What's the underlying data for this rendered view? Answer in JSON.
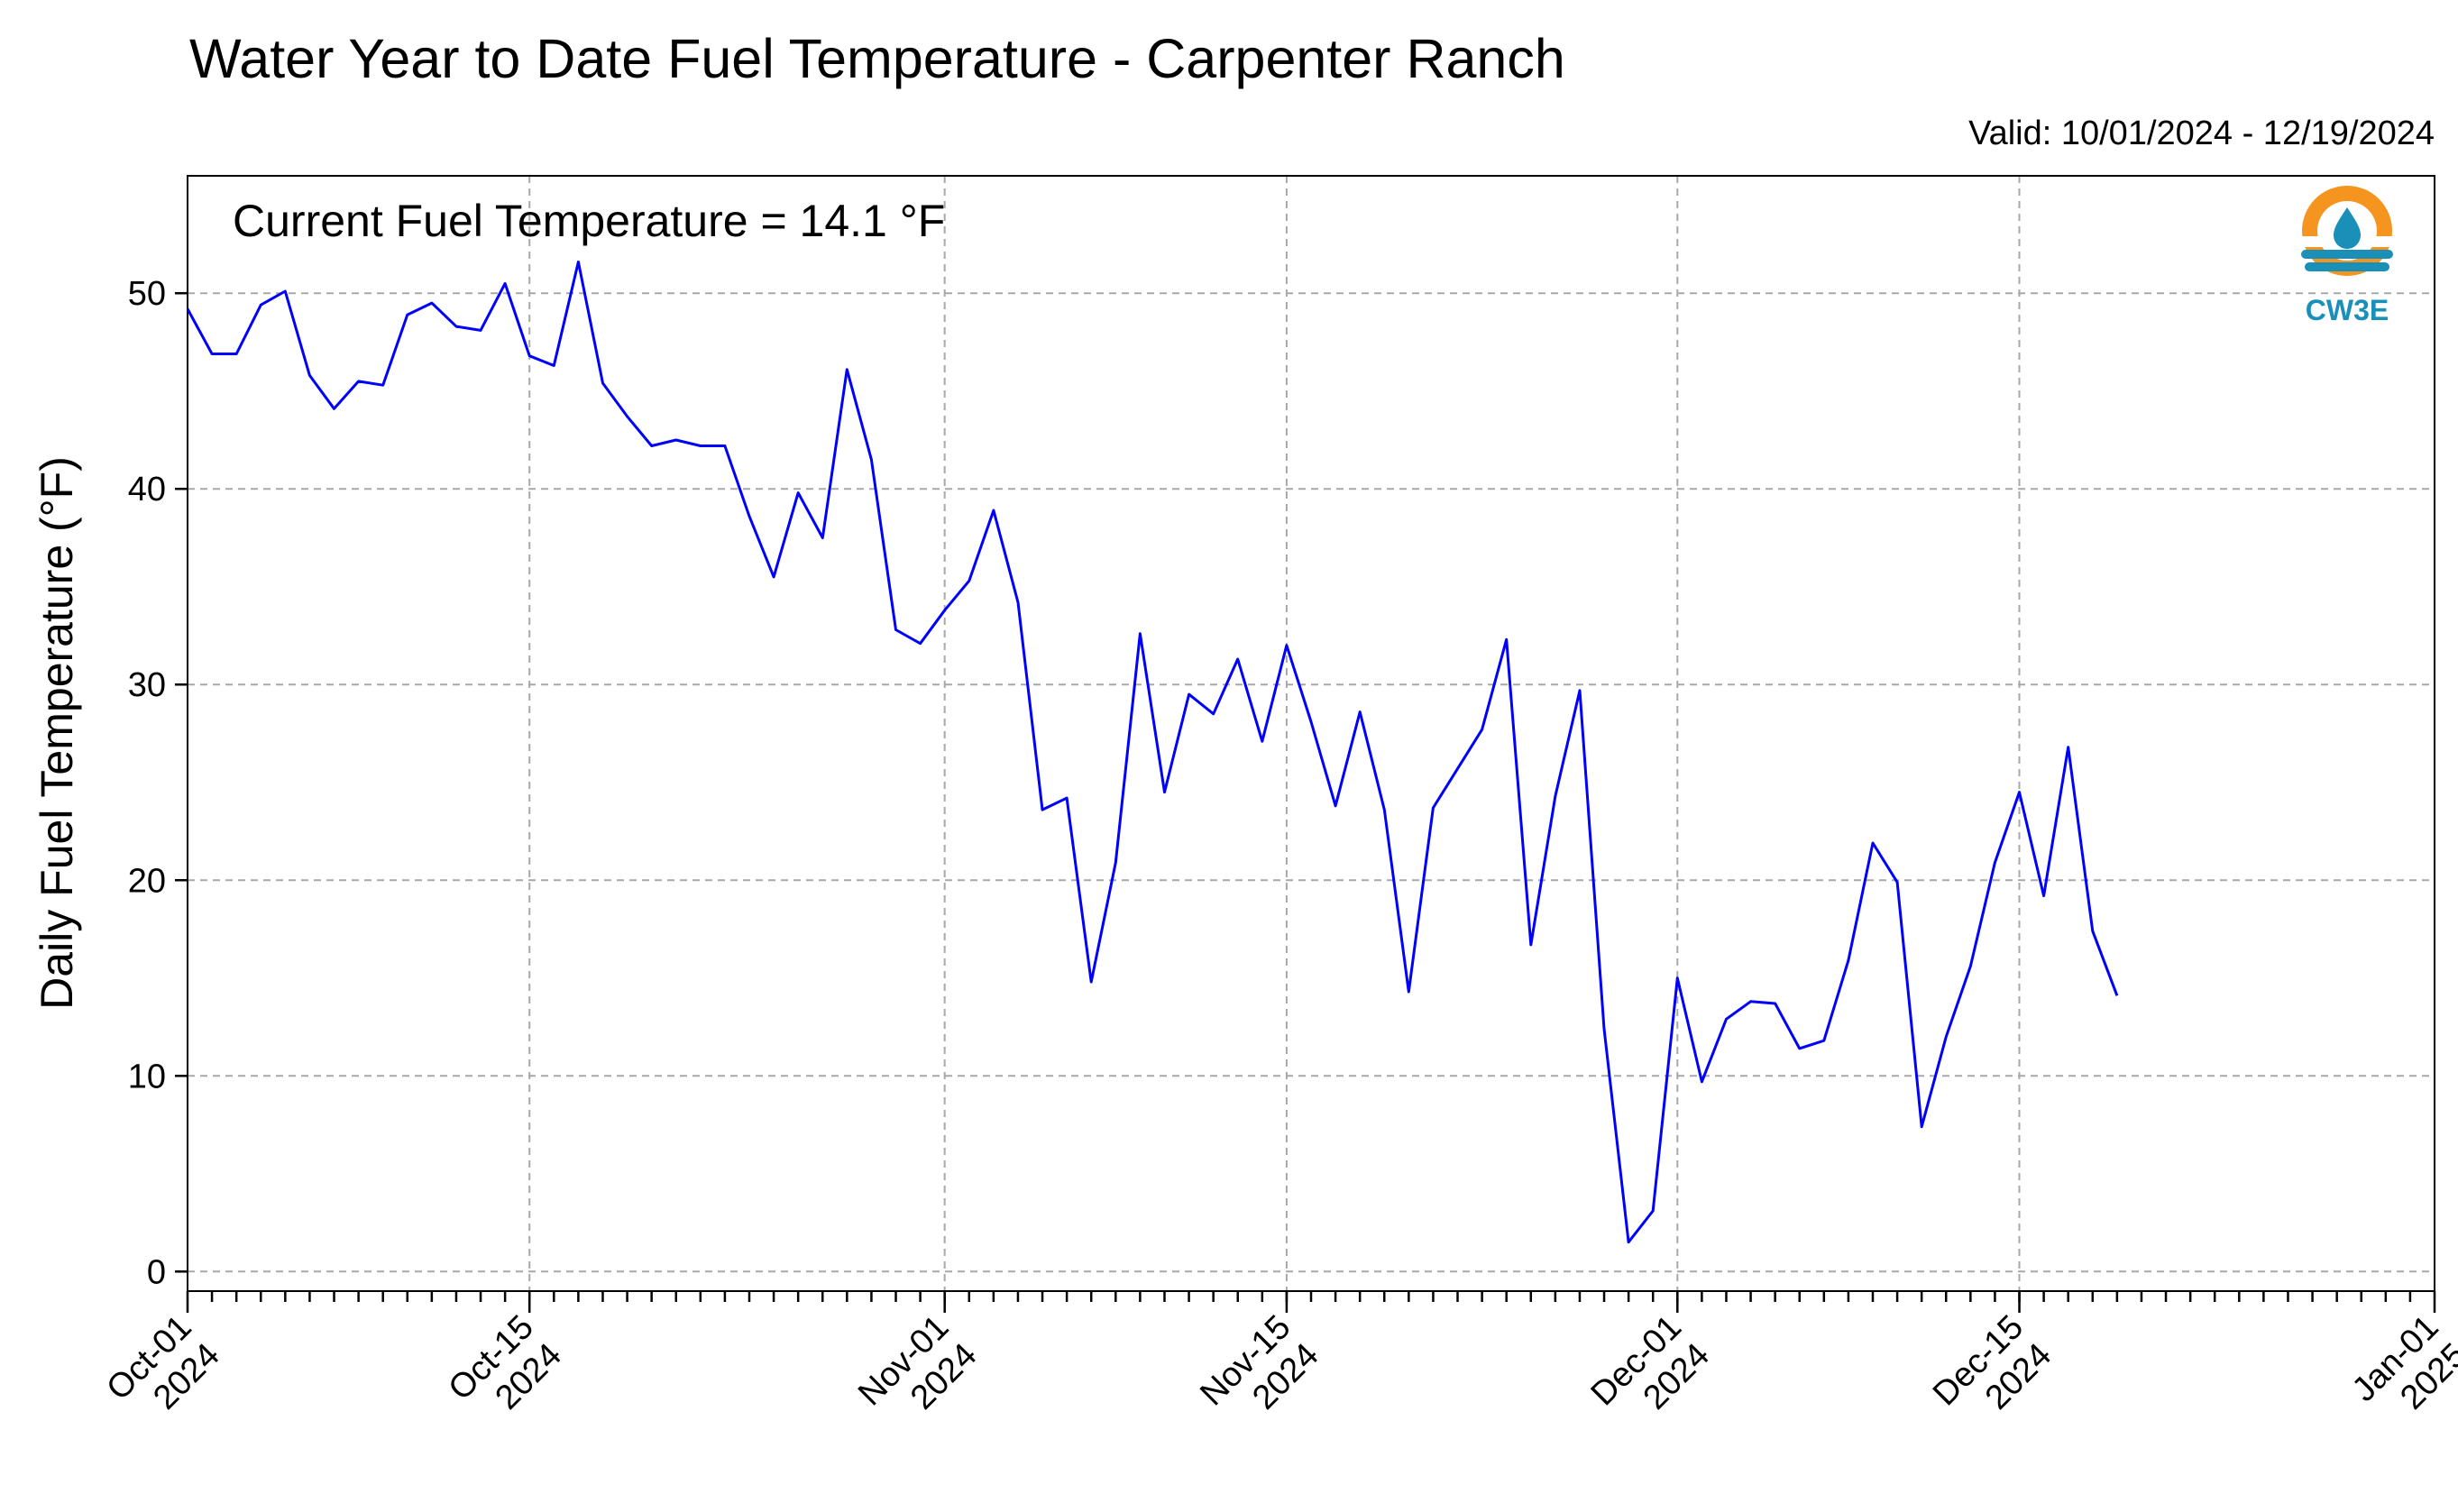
{
  "chart_data": {
    "type": "line",
    "title": "Water Year to Date Fuel Temperature - Carpenter Ranch",
    "subtitle": "Valid: 10/01/2024 - 12/19/2024",
    "annotation": "Current Fuel Temperature = 14.1 °F",
    "xlabel": "",
    "ylabel": "Daily Fuel Temperature (°F)",
    "xlim": [
      "2024-10-01",
      "2025-01-01"
    ],
    "ylim": [
      -1,
      56
    ],
    "grid": true,
    "logo_text": "CW3E",
    "x_ticks": [
      {
        "date": "2024-10-01",
        "line1": "Oct-01",
        "line2": "2024"
      },
      {
        "date": "2024-10-15",
        "line1": "Oct-15",
        "line2": "2024"
      },
      {
        "date": "2024-11-01",
        "line1": "Nov-01",
        "line2": "2024"
      },
      {
        "date": "2024-11-15",
        "line1": "Nov-15",
        "line2": "2024"
      },
      {
        "date": "2024-12-01",
        "line1": "Dec-01",
        "line2": "2024"
      },
      {
        "date": "2024-12-15",
        "line1": "Dec-15",
        "line2": "2024"
      },
      {
        "date": "2025-01-01",
        "line1": "Jan-01",
        "line2": "2025"
      }
    ],
    "y_ticks": [
      0,
      10,
      20,
      30,
      40,
      50
    ],
    "series": [
      {
        "color": "#0000ff",
        "x": [
          "2024-10-01",
          "2024-10-02",
          "2024-10-03",
          "2024-10-04",
          "2024-10-05",
          "2024-10-06",
          "2024-10-07",
          "2024-10-08",
          "2024-10-09",
          "2024-10-10",
          "2024-10-11",
          "2024-10-12",
          "2024-10-13",
          "2024-10-14",
          "2024-10-15",
          "2024-10-16",
          "2024-10-17",
          "2024-10-18",
          "2024-10-19",
          "2024-10-20",
          "2024-10-21",
          "2024-10-22",
          "2024-10-23",
          "2024-10-24",
          "2024-10-25",
          "2024-10-26",
          "2024-10-27",
          "2024-10-28",
          "2024-10-29",
          "2024-10-30",
          "2024-10-31",
          "2024-11-01",
          "2024-11-02",
          "2024-11-03",
          "2024-11-04",
          "2024-11-05",
          "2024-11-06",
          "2024-11-07",
          "2024-11-08",
          "2024-11-09",
          "2024-11-10",
          "2024-11-11",
          "2024-11-12",
          "2024-11-13",
          "2024-11-14",
          "2024-11-15",
          "2024-11-16",
          "2024-11-17",
          "2024-11-18",
          "2024-11-19",
          "2024-11-20",
          "2024-11-21",
          "2024-11-22",
          "2024-11-23",
          "2024-11-24",
          "2024-11-25",
          "2024-11-26",
          "2024-11-27",
          "2024-11-28",
          "2024-11-29",
          "2024-11-30",
          "2024-12-01",
          "2024-12-02",
          "2024-12-03",
          "2024-12-04",
          "2024-12-05",
          "2024-12-06",
          "2024-12-07",
          "2024-12-08",
          "2024-12-09",
          "2024-12-10",
          "2024-12-11",
          "2024-12-12",
          "2024-12-13",
          "2024-12-14",
          "2024-12-15",
          "2024-12-16",
          "2024-12-17",
          "2024-12-18",
          "2024-12-19"
        ],
        "values": [
          49.2,
          46.9,
          46.9,
          49.4,
          50.1,
          45.8,
          44.1,
          45.5,
          45.3,
          48.9,
          49.5,
          48.3,
          48.1,
          50.5,
          46.8,
          46.3,
          51.6,
          45.4,
          43.7,
          42.2,
          42.5,
          42.2,
          42.2,
          38.6,
          35.5,
          39.8,
          37.5,
          46.1,
          41.5,
          32.8,
          32.1,
          33.8,
          35.3,
          38.9,
          34.2,
          23.6,
          24.2,
          14.8,
          20.9,
          32.6,
          24.5,
          29.5,
          28.5,
          31.3,
          27.1,
          32.0,
          28.1,
          23.8,
          28.6,
          23.6,
          14.3,
          23.7,
          25.7,
          27.7,
          32.3,
          16.7,
          24.3,
          29.7,
          12.4,
          1.5,
          3.1,
          15.0,
          9.7,
          12.9,
          13.8,
          13.7,
          11.4,
          11.8,
          15.9,
          21.9,
          19.9,
          7.4,
          12.0,
          15.6,
          20.9,
          24.5,
          19.2,
          26.8,
          17.4,
          14.1
        ]
      }
    ]
  }
}
